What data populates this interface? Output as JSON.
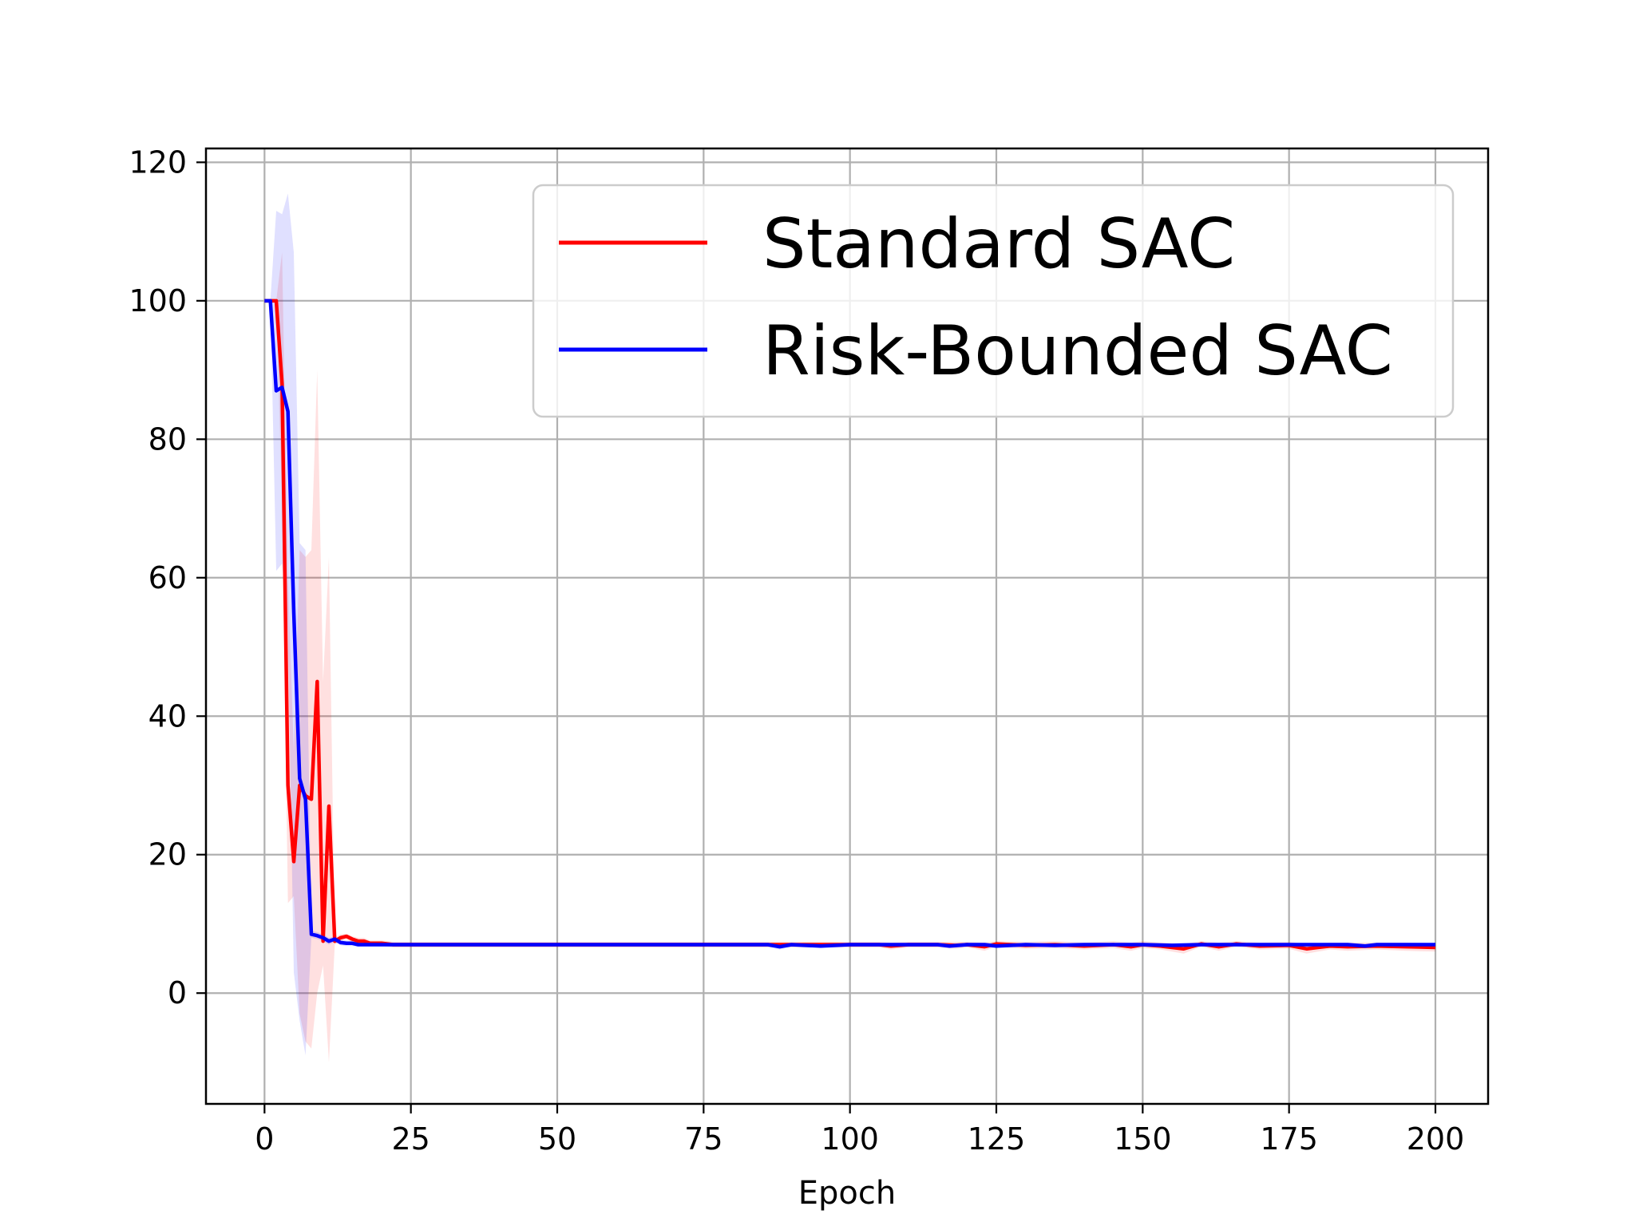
{
  "chart_data": {
    "type": "line",
    "title": "",
    "xlabel": "Epoch",
    "ylabel": "",
    "xlim": [
      -10,
      209
    ],
    "ylim": [
      -16,
      122
    ],
    "xticks": [
      0,
      25,
      50,
      75,
      100,
      125,
      150,
      175,
      200
    ],
    "yticks": [
      0,
      20,
      40,
      60,
      80,
      100,
      120
    ],
    "grid": true,
    "legend_position": "top-right",
    "series": [
      {
        "name": "Standard SAC",
        "color": "#ff0000",
        "x": [
          0,
          1,
          2,
          3,
          4,
          5,
          6,
          7,
          8,
          9,
          10,
          11,
          12,
          13,
          14,
          15,
          16,
          17,
          18,
          20,
          22,
          30,
          50,
          75,
          86,
          88,
          90,
          95,
          100,
          105,
          107,
          110,
          115,
          118,
          120,
          123,
          125,
          130,
          135,
          140,
          145,
          148,
          150,
          153,
          157,
          160,
          163,
          166,
          170,
          175,
          178,
          182,
          185,
          190,
          195,
          200
        ],
        "y": [
          100,
          100,
          100,
          88,
          30,
          19,
          30,
          28.5,
          28,
          45,
          7.5,
          27,
          7.5,
          8,
          8.2,
          7.8,
          7.5,
          7.5,
          7.2,
          7.2,
          7,
          7,
          7,
          7,
          7,
          7,
          7,
          7,
          7,
          7,
          6.8,
          7,
          7,
          6.9,
          7,
          6.7,
          7.1,
          6.9,
          7,
          6.8,
          7,
          6.7,
          7,
          6.8,
          6.4,
          7.1,
          6.7,
          7.1,
          6.8,
          6.9,
          6.4,
          6.8,
          6.7,
          6.8,
          6.7,
          6.6
        ],
        "band_upper": [
          100,
          100,
          100,
          107,
          60,
          35,
          64,
          63,
          64,
          90,
          45,
          63,
          8,
          8.5,
          8.6,
          8.2,
          8,
          8,
          7.6,
          7.6,
          7.4,
          7.4,
          7.4,
          7.4,
          7.4,
          7.4,
          7.4,
          7.4,
          7.4,
          7.4,
          7.3,
          7.4,
          7.4,
          7.4,
          7.4,
          7.3,
          7.5,
          7.4,
          7.5,
          7.3,
          7.5,
          7.3,
          7.5,
          7.3,
          7.1,
          7.5,
          7.3,
          7.5,
          7.3,
          7.4,
          7.1,
          7.3,
          7.3,
          7.3,
          7.3,
          7.2
        ],
        "band_lower": [
          100,
          100,
          100,
          70,
          13,
          14,
          -3,
          -7,
          -8,
          0,
          4,
          -10,
          7,
          7.5,
          7.8,
          7.4,
          7,
          7,
          6.8,
          6.8,
          6.6,
          6.6,
          6.6,
          6.6,
          6.6,
          6.6,
          6.6,
          6.6,
          6.6,
          6.6,
          6.3,
          6.6,
          6.6,
          6.4,
          6.6,
          6.1,
          6.7,
          6.4,
          6.5,
          6.3,
          6.5,
          6.1,
          6.5,
          6.3,
          5.7,
          6.7,
          6.1,
          6.7,
          6.3,
          6.4,
          5.7,
          6.3,
          6.1,
          6.3,
          6.1,
          6
        ]
      },
      {
        "name": "Risk-Bounded SAC",
        "color": "#0000ff",
        "x": [
          0,
          1,
          2,
          3,
          4,
          5,
          6,
          7,
          8,
          9,
          10,
          11,
          12,
          13,
          14,
          15,
          16,
          17,
          18,
          20,
          22,
          30,
          50,
          75,
          86,
          88,
          90,
          95,
          100,
          105,
          110,
          115,
          117,
          120,
          123,
          125,
          130,
          135,
          140,
          145,
          150,
          155,
          160,
          165,
          170,
          175,
          180,
          185,
          188,
          190,
          195,
          200
        ],
        "y": [
          100,
          100,
          87,
          87.5,
          84,
          55,
          31,
          28,
          8.5,
          8.3,
          8,
          7.5,
          7.8,
          7.3,
          7.2,
          7.2,
          7,
          7,
          7,
          7,
          7,
          7,
          7,
          7,
          7,
          6.7,
          7,
          6.8,
          7,
          7,
          7,
          7,
          6.8,
          7,
          7,
          6.8,
          7,
          6.9,
          7,
          7,
          7,
          6.9,
          7,
          7,
          7,
          7,
          7,
          7,
          6.8,
          7,
          7,
          7
        ],
        "band_upper": [
          100,
          100,
          113,
          112.5,
          115.5,
          107,
          65,
          64,
          9,
          8.8,
          8.5,
          8,
          8.2,
          7.7,
          7.6,
          7.6,
          7.3,
          7.3,
          7.3,
          7.3,
          7.3,
          7.3,
          7.3,
          7.3,
          7.3,
          7.1,
          7.3,
          7.1,
          7.3,
          7.3,
          7.3,
          7.3,
          7.1,
          7.3,
          7.3,
          7.1,
          7.3,
          7.2,
          7.3,
          7.3,
          7.3,
          7.2,
          7.3,
          7.3,
          7.3,
          7.3,
          7.3,
          7.3,
          7.1,
          7.3,
          7.3,
          7.3
        ],
        "band_lower": [
          100,
          100,
          61,
          62,
          52,
          3,
          -4,
          -9,
          8,
          7.8,
          7.5,
          7,
          7.4,
          6.9,
          6.8,
          6.8,
          6.7,
          6.7,
          6.7,
          6.7,
          6.7,
          6.7,
          6.7,
          6.7,
          6.7,
          6.3,
          6.7,
          6.5,
          6.7,
          6.7,
          6.7,
          6.7,
          6.5,
          6.7,
          6.7,
          6.5,
          6.7,
          6.6,
          6.7,
          6.7,
          6.7,
          6.6,
          6.7,
          6.7,
          6.7,
          6.7,
          6.7,
          6.7,
          6.5,
          6.7,
          6.7,
          6.7
        ]
      }
    ]
  }
}
